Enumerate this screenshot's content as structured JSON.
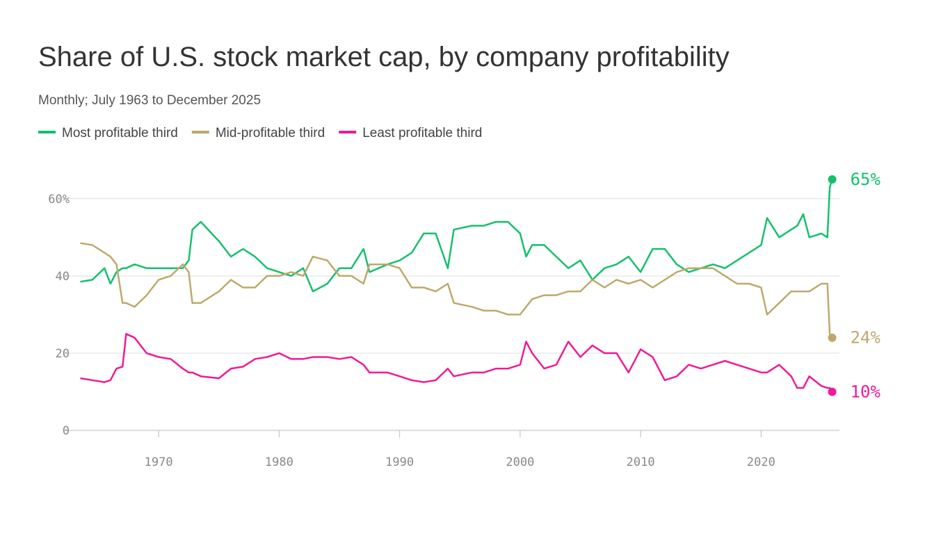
{
  "chart_data": {
    "type": "line",
    "title": "Share of U.S. stock market cap, by company profitability",
    "subtitle": "Monthly; July 1963 to December 2025",
    "x": [
      1963.5,
      1964.5,
      1965.5,
      1966,
      1966.5,
      1967,
      1967.3,
      1968,
      1969,
      1970,
      1971,
      1972,
      1972.5,
      1972.8,
      1973.5,
      1975,
      1976,
      1977,
      1978,
      1979,
      1980,
      1981,
      1982,
      1982.8,
      1984,
      1985,
      1986,
      1987,
      1987.5,
      1989,
      1990,
      1991,
      1992,
      1993,
      1994,
      1994.5,
      1996,
      1997,
      1998,
      1999,
      2000,
      2000.5,
      2001,
      2002,
      2003,
      2004,
      2005,
      2006,
      2007,
      2008,
      2009,
      2010,
      2011,
      2012,
      2013,
      2014,
      2015,
      2016,
      2017,
      2018,
      2019,
      2020,
      2020.5,
      2021.5,
      2022.5,
      2023,
      2023.5,
      2024,
      2025,
      2025.5,
      2025.7,
      2025.9
    ],
    "series": [
      {
        "name": "Most profitable third",
        "color": "#13c06c",
        "end_label": "65%",
        "values": [
          38.5,
          39,
          42,
          38,
          41,
          42,
          42,
          43,
          42,
          42,
          42,
          42,
          44,
          52,
          54,
          49,
          45,
          47,
          45,
          42,
          41,
          40,
          42,
          36,
          38,
          42,
          42,
          47,
          41,
          43,
          44,
          46,
          51,
          51,
          42,
          52,
          53,
          53,
          54,
          54,
          51,
          45,
          48,
          48,
          45,
          42,
          44,
          39,
          42,
          43,
          45,
          41,
          47,
          47,
          43,
          41,
          42,
          43,
          42,
          44,
          46,
          48,
          55,
          50,
          52,
          53,
          56,
          50,
          51,
          50,
          63,
          65
        ]
      },
      {
        "name": "Mid-profitable third",
        "color": "#bda96b",
        "end_label": "24%",
        "values": [
          48.5,
          48,
          46,
          45,
          43,
          33,
          33,
          32,
          35,
          39,
          40,
          43,
          41,
          33,
          33,
          36,
          39,
          37,
          37,
          40,
          40,
          41,
          40,
          45,
          44,
          40,
          40,
          38,
          43,
          43,
          42,
          37,
          37,
          36,
          38,
          33,
          32,
          31,
          31,
          30,
          30,
          32,
          34,
          35,
          35,
          36,
          36,
          39,
          37,
          39,
          38,
          39,
          37,
          39,
          41,
          42,
          42,
          42,
          40,
          38,
          38,
          37,
          30,
          33,
          36,
          36,
          36,
          36,
          38,
          38,
          25,
          24
        ]
      },
      {
        "name": "Least profitable third",
        "color": "#f01a96",
        "end_label": "10%",
        "values": [
          13.5,
          13,
          12.5,
          13,
          16,
          16.5,
          25,
          24,
          20,
          19,
          18.5,
          16,
          15,
          15,
          14,
          13.5,
          16,
          16.5,
          18.5,
          19,
          20,
          18.5,
          18.5,
          19,
          19,
          18.5,
          19,
          17,
          15,
          15,
          14,
          13,
          12.5,
          13,
          16,
          14,
          15,
          15,
          16,
          16,
          17,
          23,
          20,
          16,
          17,
          23,
          19,
          22,
          20,
          20,
          15,
          21,
          19,
          13,
          14,
          17,
          16,
          17,
          18,
          17,
          16,
          15,
          15,
          17,
          14,
          11,
          11,
          14,
          11.5,
          11,
          11,
          10
        ]
      }
    ],
    "xlim": [
      1962.2,
      2026.5
    ],
    "xticks": [
      1970,
      1980,
      1990,
      2000,
      2010,
      2020
    ],
    "ylim": [
      0,
      65
    ],
    "yticks": [
      0,
      20,
      40,
      {
        "value": 60,
        "label": "60%"
      }
    ],
    "grid": true
  }
}
